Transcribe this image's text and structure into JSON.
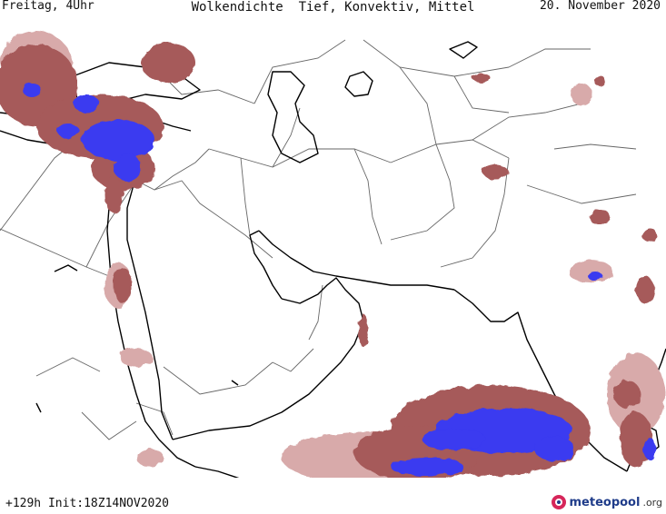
{
  "header": {
    "day_time": "Freitag, 4Uhr",
    "title": "Wolkendichte  Tief, Konvektiv, Mittel",
    "valid_date": "20. November 2020"
  },
  "footer": {
    "run_info": "+129h Init:18Z14NOV2020",
    "brand_name": "meteopool",
    "brand_tld": ".org"
  },
  "legend_colors": {
    "light_cloud": "#d8aaaa",
    "medium_cloud": "#a65a5a",
    "dense_cloud": "#8b1e1e",
    "deep_convective": "#3a3af0",
    "coastline": "#000000",
    "border": "#555555"
  }
}
